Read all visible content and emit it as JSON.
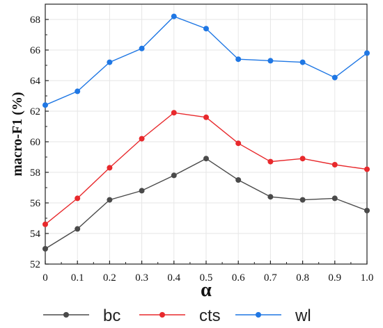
{
  "chart_data": {
    "type": "line",
    "title": "",
    "xlabel": "α",
    "ylabel": "macro-F1 (%)",
    "x": [
      0,
      0.1,
      0.2,
      0.3,
      0.4,
      0.5,
      0.6,
      0.7,
      0.8,
      0.9,
      1.0
    ],
    "x_tick_labels": [
      "0",
      "0.1",
      "0.2",
      "0.3",
      "0.4",
      "0.5",
      "0.6",
      "0.7",
      "0.8",
      "0.9",
      "1.0"
    ],
    "y_ticks": [
      52,
      54,
      56,
      58,
      60,
      62,
      64,
      66,
      68
    ],
    "y_tick_labels": [
      "52",
      "54",
      "56",
      "58",
      "60",
      "62",
      "64",
      "66",
      "68"
    ],
    "xlim": [
      0,
      1.0
    ],
    "ylim": [
      52,
      69
    ],
    "grid": true,
    "legend_position": "bottom",
    "series": [
      {
        "name": "bc",
        "color": "#4a4a4a",
        "values": [
          53.0,
          54.3,
          56.2,
          56.8,
          57.8,
          58.9,
          57.5,
          56.4,
          56.2,
          56.3,
          55.5
        ]
      },
      {
        "name": "cts",
        "color": "#e8292c",
        "values": [
          54.6,
          56.3,
          58.3,
          60.2,
          61.9,
          61.6,
          59.9,
          58.7,
          58.9,
          58.5,
          58.2
        ]
      },
      {
        "name": "wl",
        "color": "#1f77e4",
        "values": [
          62.4,
          63.3,
          65.2,
          66.1,
          68.2,
          67.4,
          65.4,
          65.3,
          65.2,
          64.2,
          65.8
        ]
      }
    ]
  }
}
